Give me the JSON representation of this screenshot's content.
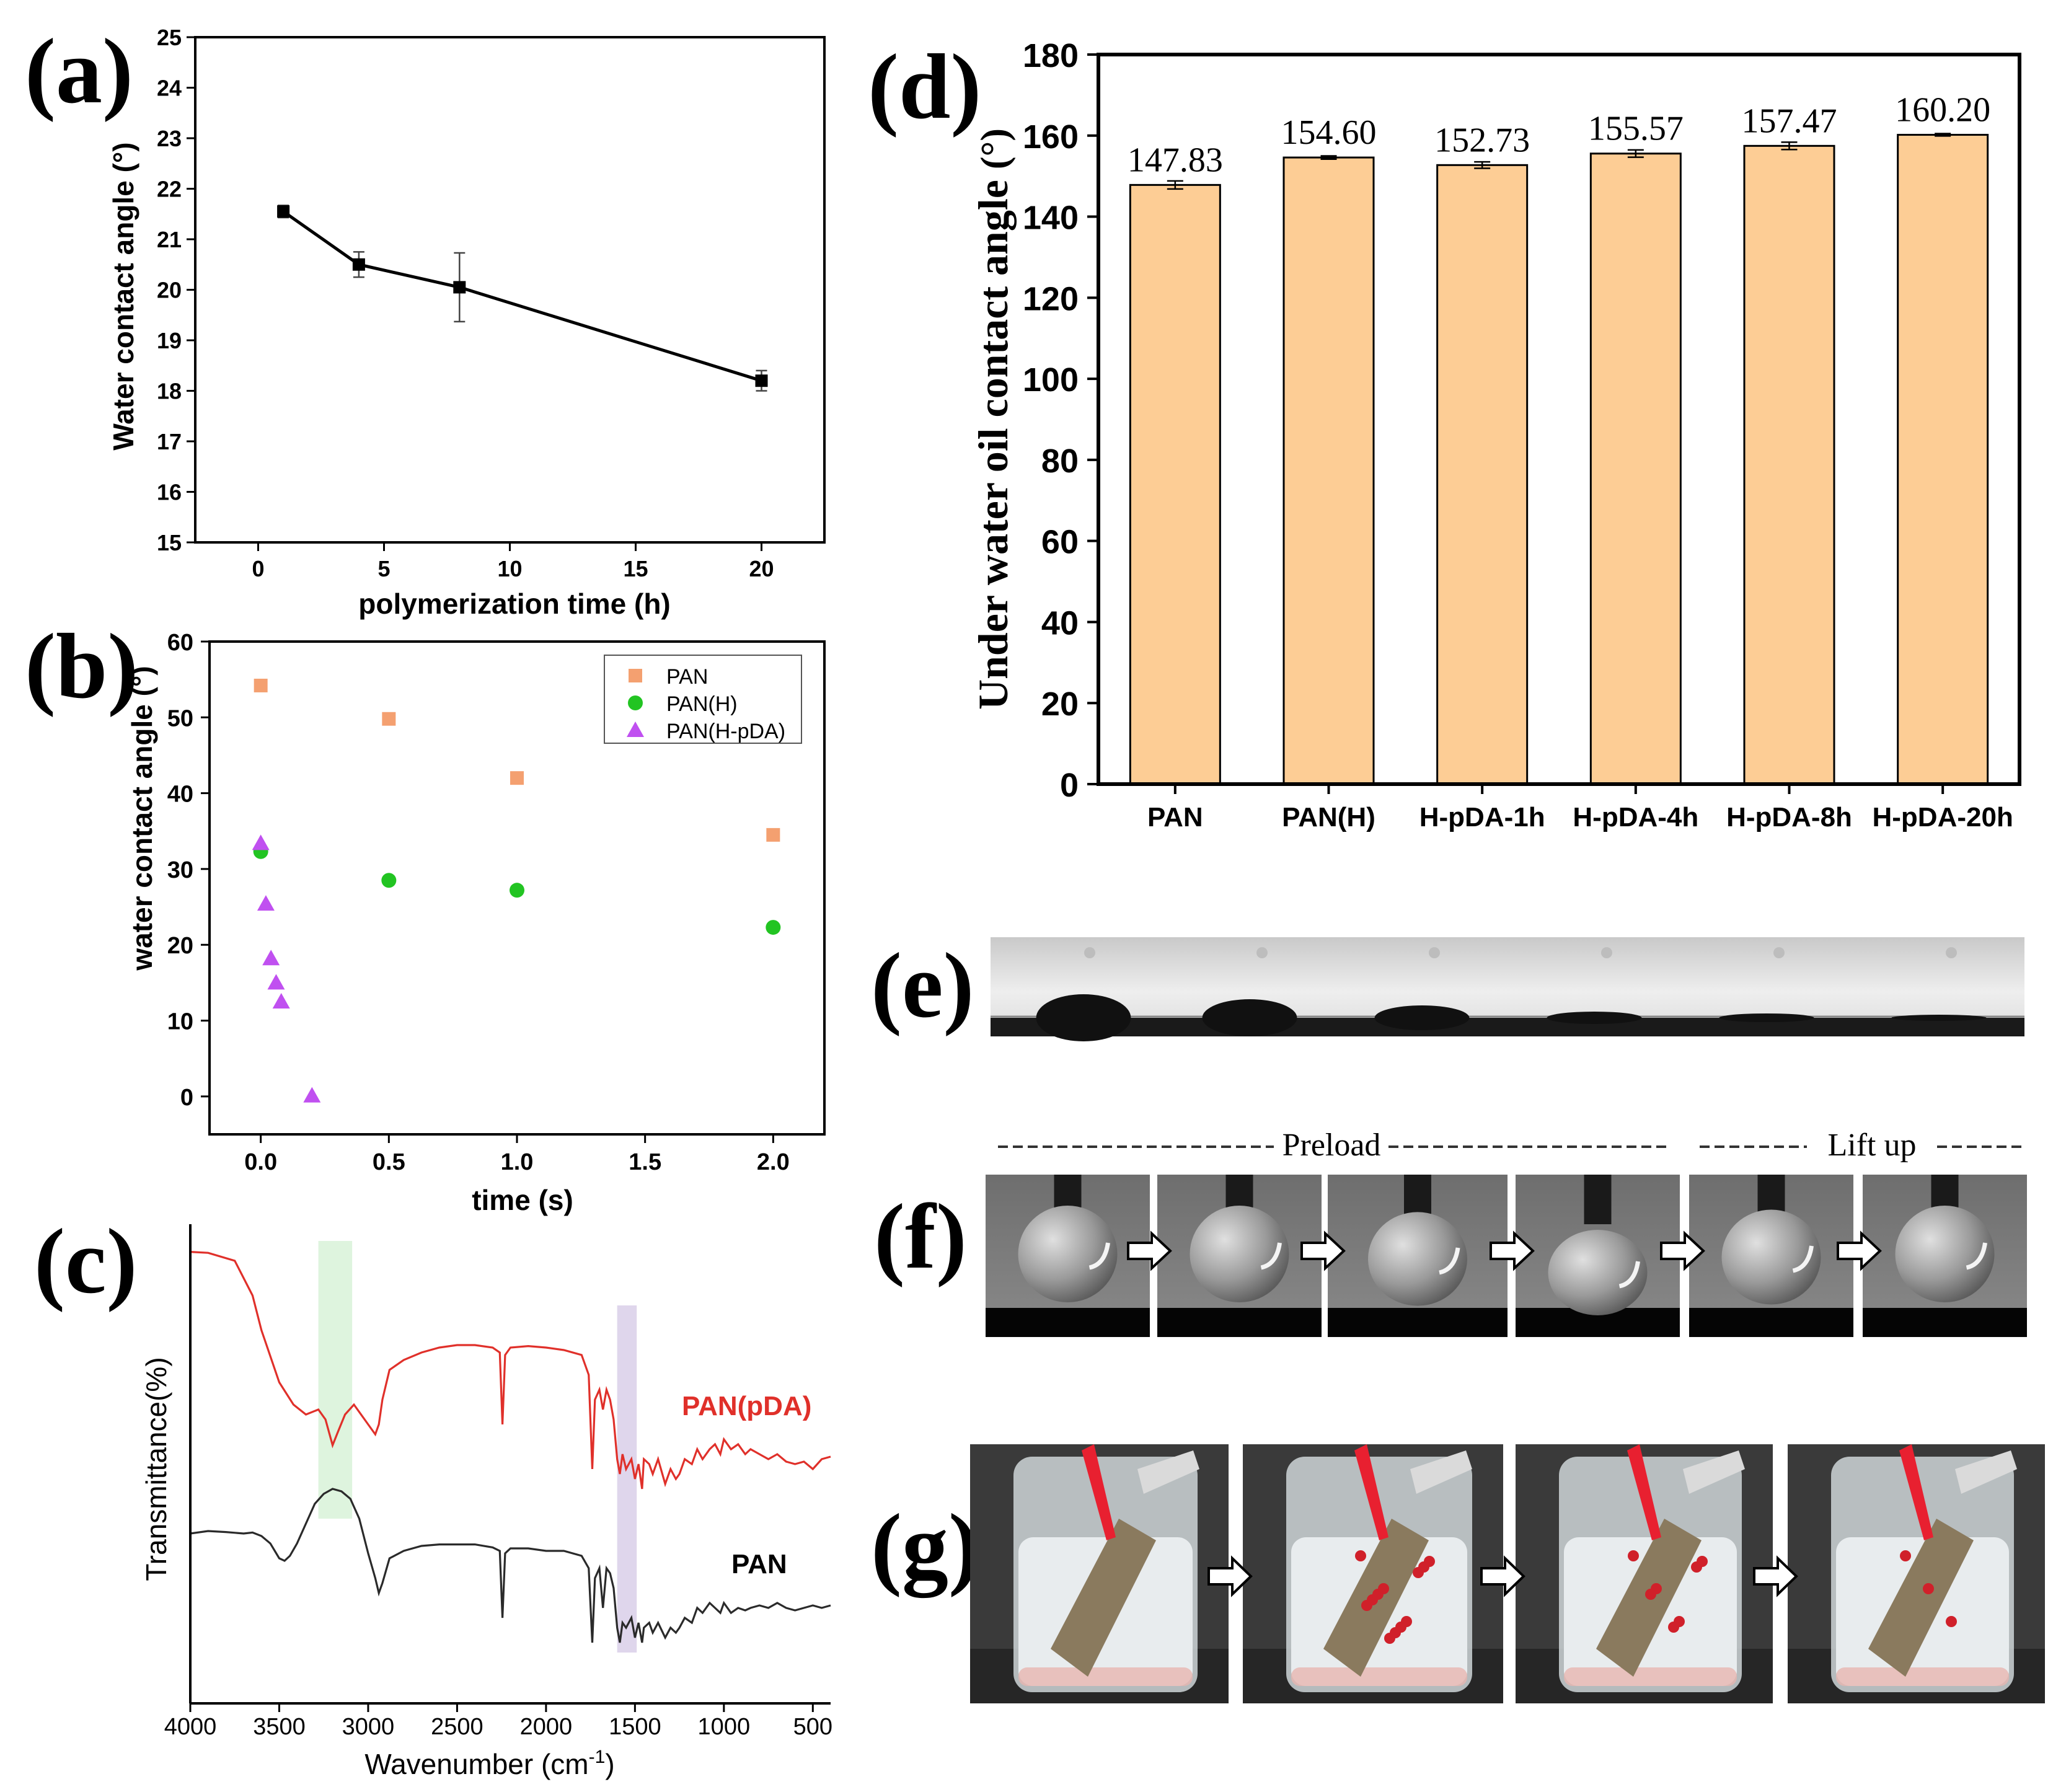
{
  "panels": {
    "a": "(a)",
    "b": "(b)",
    "c": "(c)",
    "d": "(d)",
    "e": "(e)",
    "f": "(f)",
    "g": "(g)"
  },
  "panel_f": {
    "preload_label": "Preload",
    "lift_up_label": "Lift up"
  },
  "colors": {
    "pan": "#f4a070",
    "pan_h": "#22c422",
    "pan_hpda": "#c050f0",
    "pan_pda_line": "#e0302a",
    "pan_line": "#2a2a2a",
    "bar_fill": "#fdcd95"
  },
  "chart_data": [
    {
      "type": "line",
      "panel": "a",
      "xlabel": "polymerization time (h)",
      "ylabel": "Water contact angle (°)",
      "xlim": [
        -2.5,
        22.5
      ],
      "ylim": [
        15,
        25
      ],
      "xticks": [
        0,
        5,
        10,
        15,
        20
      ],
      "yticks": [
        15,
        16,
        17,
        18,
        19,
        20,
        21,
        22,
        23,
        24,
        25
      ],
      "x": [
        1,
        4,
        8,
        20
      ],
      "y": [
        21.55,
        20.5,
        20.05,
        18.2
      ],
      "yerr": [
        0.12,
        0.25,
        0.68,
        0.2
      ]
    },
    {
      "type": "scatter",
      "panel": "b",
      "xlabel": "time (s)",
      "ylabel": "water contact angle (°)",
      "xlim": [
        -0.2,
        2.2
      ],
      "ylim": [
        -5,
        60
      ],
      "xticks": [
        "0.0",
        "0.5",
        "1.0",
        "1.5",
        "2.0"
      ],
      "yticks": [
        0,
        10,
        20,
        30,
        40,
        50,
        60
      ],
      "legend_position": "top-right",
      "series": [
        {
          "name": "PAN",
          "marker": "square",
          "x": [
            0,
            0.5,
            1.0,
            2.0
          ],
          "y": [
            54.2,
            49.8,
            42.0,
            34.5
          ]
        },
        {
          "name": "PAN(H)",
          "marker": "circle",
          "x": [
            0,
            0.5,
            1.0,
            2.0
          ],
          "y": [
            32.3,
            28.5,
            27.2,
            22.3
          ]
        },
        {
          "name": "PAN(H-pDA)",
          "marker": "triangle",
          "x": [
            0,
            0.02,
            0.04,
            0.06,
            0.08,
            0.2
          ],
          "y": [
            33.4,
            25.4,
            18.2,
            15.0,
            12.5,
            0.1
          ]
        }
      ]
    },
    {
      "type": "line",
      "panel": "c",
      "xlabel_main": "Wavenumber (cm",
      "xlabel_exp": "-1",
      "xlabel_close": ")",
      "ylabel": "Transmittance(%)",
      "xlim": [
        4000,
        400
      ],
      "xticks": [
        4000,
        3500,
        3000,
        2500,
        2000,
        1500,
        1000,
        500
      ],
      "ylim": [
        0,
        100
      ],
      "highlight_bands": [
        [
          3280,
          3090
        ],
        [
          1600,
          1490
        ]
      ],
      "series": [
        {
          "name": "PAN(pDA)",
          "x": [
            4000,
            3900,
            3750,
            3650,
            3600,
            3500,
            3420,
            3350,
            3280,
            3240,
            3200,
            3170,
            3130,
            3080,
            3000,
            2960,
            2940,
            2920,
            2880,
            2800,
            2700,
            2600,
            2500,
            2400,
            2300,
            2260,
            2245,
            2230,
            2200,
            2100,
            2000,
            1900,
            1800,
            1760,
            1740,
            1725,
            1700,
            1680,
            1660,
            1640,
            1620,
            1600,
            1585,
            1570,
            1550,
            1520,
            1500,
            1480,
            1460,
            1450,
            1420,
            1400,
            1370,
            1330,
            1300,
            1270,
            1250,
            1220,
            1180,
            1150,
            1120,
            1080,
            1050,
            1020,
            1000,
            960,
            920,
            880,
            850,
            800,
            750,
            700,
            650,
            600,
            550,
            500,
            450,
            400
          ],
          "y": [
            83.8,
            83.6,
            82,
            75,
            68,
            57.5,
            53,
            51,
            52,
            50,
            44.8,
            47.5,
            51,
            53,
            49,
            47,
            49,
            54,
            60,
            62,
            63.5,
            64.5,
            65,
            65,
            64.5,
            63.5,
            49,
            63,
            64.5,
            64.8,
            64.5,
            64,
            63,
            59,
            40,
            54,
            56,
            52,
            56,
            54,
            50,
            42,
            39,
            43,
            40,
            42,
            38,
            41,
            36,
            42,
            41,
            39,
            42,
            37,
            40,
            38,
            39,
            42,
            41,
            44,
            42,
            44,
            45,
            43,
            46,
            44,
            45,
            43,
            44,
            43,
            42,
            43,
            41.5,
            41,
            41.5,
            40,
            42,
            42.5
          ]
        },
        {
          "name": "PAN",
          "x": [
            4000,
            3900,
            3800,
            3700,
            3650,
            3600,
            3550,
            3500,
            3470,
            3440,
            3400,
            3350,
            3300,
            3250,
            3200,
            3150,
            3100,
            3050,
            3000,
            2960,
            2940,
            2920,
            2880,
            2800,
            2700,
            2600,
            2500,
            2400,
            2300,
            2260,
            2245,
            2230,
            2200,
            2100,
            2000,
            1900,
            1800,
            1760,
            1740,
            1725,
            1700,
            1680,
            1660,
            1640,
            1620,
            1600,
            1585,
            1570,
            1550,
            1520,
            1500,
            1480,
            1460,
            1450,
            1420,
            1400,
            1370,
            1330,
            1300,
            1270,
            1250,
            1220,
            1180,
            1150,
            1120,
            1080,
            1050,
            1020,
            1000,
            960,
            920,
            880,
            850,
            800,
            750,
            700,
            650,
            600,
            550,
            500,
            450,
            400
          ],
          "y": [
            27,
            27.5,
            27.3,
            27,
            27.2,
            26.5,
            25,
            22,
            21.5,
            22.5,
            25,
            29,
            33,
            35,
            36,
            35.5,
            34,
            30,
            23,
            18,
            15,
            17,
            22,
            23.5,
            24.5,
            24.8,
            24.8,
            24.8,
            24.2,
            23.5,
            10,
            23,
            24,
            24,
            23.5,
            23.5,
            22.5,
            20,
            5,
            18,
            20,
            12,
            20,
            19,
            16,
            8,
            5,
            9,
            8,
            10,
            6,
            9,
            5,
            8,
            9,
            7,
            9,
            6,
            8,
            7,
            8,
            10,
            9,
            12,
            11,
            13,
            12,
            11,
            13,
            11,
            12,
            11.5,
            12,
            12.5,
            12,
            13,
            12,
            11.5,
            12,
            12.5,
            12,
            12.5
          ]
        }
      ]
    },
    {
      "type": "bar",
      "panel": "d",
      "ylabel_main": "Under water oil contact angle ",
      "ylabel_unit": "(°)",
      "ylim": [
        0,
        180
      ],
      "yticks": [
        0,
        20,
        40,
        60,
        80,
        100,
        120,
        140,
        160,
        180
      ],
      "categories": [
        "PAN",
        "PAN(H)",
        "H-pDA-1h",
        "H-pDA-4h",
        "H-pDA-8h",
        "H-pDA-20h"
      ],
      "values": [
        147.83,
        154.6,
        152.73,
        155.57,
        157.47,
        160.2
      ],
      "value_labels": [
        "147.83",
        "154.60",
        "152.73",
        "155.57",
        "157.47",
        "160.20"
      ],
      "yerr": [
        1.0,
        0.4,
        0.8,
        0.9,
        0.9,
        0.3
      ]
    }
  ]
}
